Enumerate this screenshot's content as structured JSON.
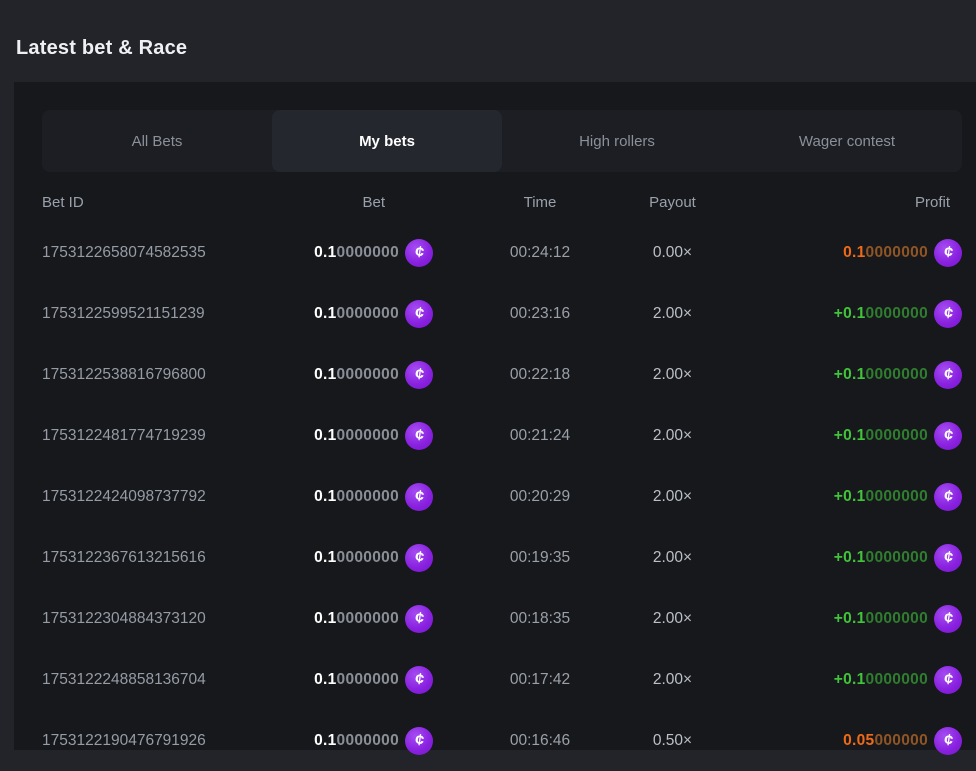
{
  "page": {
    "title": "Latest bet & Race"
  },
  "tabs": [
    {
      "label": "All Bets",
      "active": false
    },
    {
      "label": "My bets",
      "active": true
    },
    {
      "label": "High rollers",
      "active": false
    },
    {
      "label": "Wager contest",
      "active": false
    }
  ],
  "icons": {
    "coin": "¢"
  },
  "colors": {
    "background_outer": "#22242a",
    "panel": "#17181c",
    "tabbar": "#1c1e23",
    "tab_active": "#25272e",
    "coin_purple": "#8a22e0",
    "win_green": "#41c43a",
    "loss_orange": "#ee6a18"
  },
  "table": {
    "columns": [
      "Bet ID",
      "Bet",
      "Time",
      "Payout",
      "Profit"
    ],
    "rows": [
      {
        "id": "1753122658074582535",
        "bet_main": "0.1",
        "bet_rest": "0000000",
        "time": "00:24:12",
        "payout": "0.00×",
        "profit_main": "0.1",
        "profit_rest": "0000000",
        "result": "loss"
      },
      {
        "id": "1753122599521151239",
        "bet_main": "0.1",
        "bet_rest": "0000000",
        "time": "00:23:16",
        "payout": "2.00×",
        "profit_main": "+0.1",
        "profit_rest": "0000000",
        "result": "win"
      },
      {
        "id": "1753122538816796800",
        "bet_main": "0.1",
        "bet_rest": "0000000",
        "time": "00:22:18",
        "payout": "2.00×",
        "profit_main": "+0.1",
        "profit_rest": "0000000",
        "result": "win"
      },
      {
        "id": "1753122481774719239",
        "bet_main": "0.1",
        "bet_rest": "0000000",
        "time": "00:21:24",
        "payout": "2.00×",
        "profit_main": "+0.1",
        "profit_rest": "0000000",
        "result": "win"
      },
      {
        "id": "1753122424098737792",
        "bet_main": "0.1",
        "bet_rest": "0000000",
        "time": "00:20:29",
        "payout": "2.00×",
        "profit_main": "+0.1",
        "profit_rest": "0000000",
        "result": "win"
      },
      {
        "id": "1753122367613215616",
        "bet_main": "0.1",
        "bet_rest": "0000000",
        "time": "00:19:35",
        "payout": "2.00×",
        "profit_main": "+0.1",
        "profit_rest": "0000000",
        "result": "win"
      },
      {
        "id": "1753122304884373120",
        "bet_main": "0.1",
        "bet_rest": "0000000",
        "time": "00:18:35",
        "payout": "2.00×",
        "profit_main": "+0.1",
        "profit_rest": "0000000",
        "result": "win"
      },
      {
        "id": "1753122248858136704",
        "bet_main": "0.1",
        "bet_rest": "0000000",
        "time": "00:17:42",
        "payout": "2.00×",
        "profit_main": "+0.1",
        "profit_rest": "0000000",
        "result": "win"
      },
      {
        "id": "1753122190476791926",
        "bet_main": "0.1",
        "bet_rest": "0000000",
        "time": "00:16:46",
        "payout": "0.50×",
        "profit_main": "0.05",
        "profit_rest": "000000",
        "result": "loss"
      }
    ]
  }
}
